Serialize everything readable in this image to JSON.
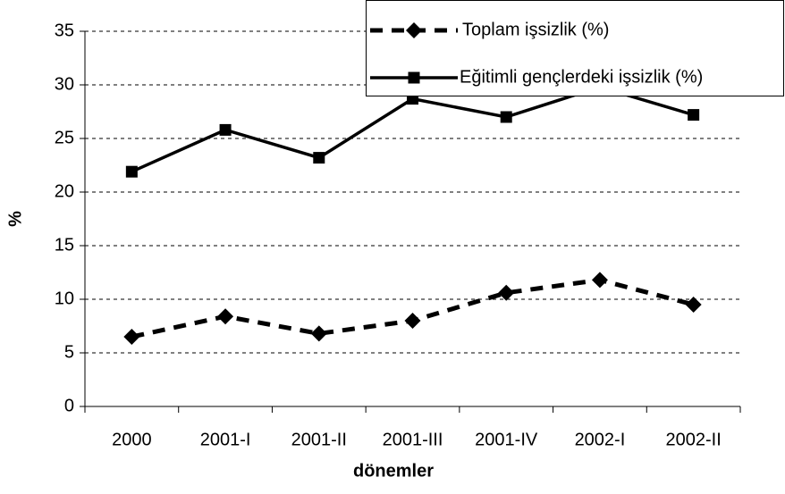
{
  "chart_data": {
    "type": "line",
    "x_label": "dönemler",
    "y_label": "%",
    "categories": [
      "2000",
      "2001-I",
      "2001-II",
      "2001-III",
      "2001-IV",
      "2002-I",
      "2002-II"
    ],
    "series": [
      {
        "name": "Toplam işsizlik (%)",
        "color": "#000000",
        "dash": true,
        "marker": "diamond",
        "values": [
          6.5,
          8.4,
          6.8,
          8.0,
          10.6,
          11.8,
          9.5
        ]
      },
      {
        "name": "Eğitimli gençlerdeki işsizlik (%)",
        "color": "#000000",
        "dash": false,
        "marker": "square",
        "values": [
          21.9,
          25.8,
          23.2,
          28.7,
          27.0,
          29.8,
          27.2
        ]
      }
    ],
    "ylim": [
      0,
      35
    ],
    "yticks": [
      0,
      5,
      10,
      15,
      20,
      25,
      30,
      35
    ],
    "grid": true,
    "legend": "top-right"
  }
}
